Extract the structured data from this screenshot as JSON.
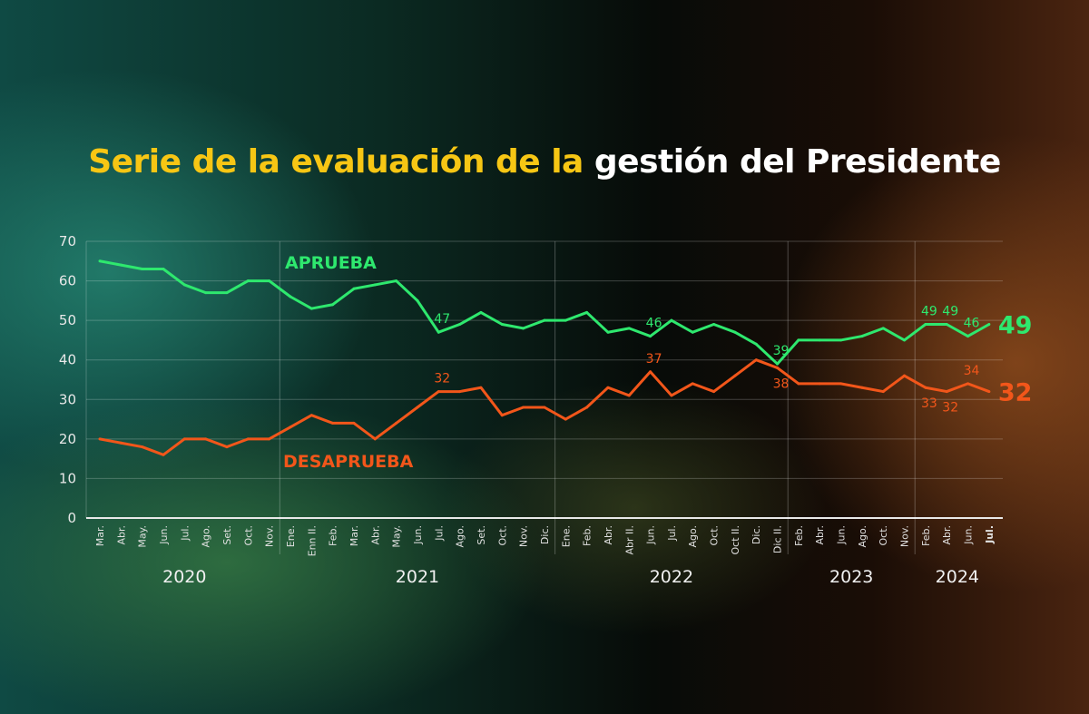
{
  "title": {
    "part1": "Serie de la evaluación de la",
    "part2": "gestión del Presidente"
  },
  "chart_data": {
    "type": "line",
    "title": "Serie de la evaluación de la gestión del Presidente",
    "ylim": [
      0,
      70
    ],
    "yticks": [
      0,
      10,
      20,
      30,
      40,
      50,
      60,
      70
    ],
    "grid": true,
    "years": [
      {
        "label": "2020",
        "months": [
          "Mar.",
          "Abr.",
          "May.",
          "Jun.",
          "Jul.",
          "Ago.",
          "Set.",
          "Oct.",
          "Nov."
        ]
      },
      {
        "label": "2021",
        "months": [
          "Ene.",
          "Enn II.",
          "Feb.",
          "Mar.",
          "Abr.",
          "May.",
          "Jun.",
          "Jul.",
          "Ago.",
          "Set.",
          "Oct.",
          "Nov.",
          "Dic."
        ]
      },
      {
        "label": "2022",
        "months": [
          "Ene.",
          "Feb.",
          "Abr.",
          "Abr II.",
          "Jun.",
          "Jul.",
          "Ago.",
          "Oct.",
          "Oct II.",
          "Dic.",
          "Dic II."
        ]
      },
      {
        "label": "2023",
        "months": [
          "Feb.",
          "Abr.",
          "Jun.",
          "Ago.",
          "Oct.",
          "Nov."
        ]
      },
      {
        "label": "2024",
        "months": [
          "Feb.",
          "Abr.",
          "Jun.",
          "Jul."
        ]
      }
    ],
    "series": [
      {
        "name": "APRUEBA",
        "color": "#2ee86e",
        "values": [
          65,
          64,
          63,
          63,
          59,
          57,
          57,
          60,
          60,
          56,
          53,
          54,
          58,
          59,
          60,
          55,
          47,
          49,
          52,
          49,
          48,
          50,
          50,
          52,
          47,
          48,
          46,
          50,
          47,
          49,
          47,
          44,
          39,
          45,
          45,
          45,
          46,
          48,
          45,
          49,
          49,
          46,
          49
        ],
        "labels": [
          {
            "index": 16,
            "text": "47",
            "pos": "above"
          },
          {
            "index": 26,
            "text": "46",
            "pos": "above"
          },
          {
            "index": 32,
            "text": "39",
            "pos": "above"
          },
          {
            "index": 39,
            "text": "49",
            "pos": "above"
          },
          {
            "index": 40,
            "text": "49",
            "pos": "above"
          },
          {
            "index": 41,
            "text": "46",
            "pos": "above"
          }
        ],
        "end_label": "49"
      },
      {
        "name": "DESAPRUEBA",
        "color": "#f2561a",
        "values": [
          20,
          19,
          18,
          16,
          20,
          20,
          18,
          20,
          20,
          23,
          26,
          24,
          24,
          20,
          24,
          28,
          32,
          32,
          33,
          26,
          28,
          28,
          25,
          28,
          33,
          31,
          37,
          31,
          34,
          32,
          36,
          40,
          38,
          34,
          34,
          34,
          33,
          32,
          36,
          33,
          32,
          34,
          32
        ],
        "labels": [
          {
            "index": 16,
            "text": "32",
            "pos": "above"
          },
          {
            "index": 26,
            "text": "37",
            "pos": "above"
          },
          {
            "index": 32,
            "text": "38",
            "pos": "below"
          },
          {
            "index": 39,
            "text": "33",
            "pos": "below"
          },
          {
            "index": 40,
            "text": "32",
            "pos": "below"
          },
          {
            "index": 41,
            "text": "34",
            "pos": "above"
          }
        ],
        "end_label": "32"
      }
    ]
  }
}
